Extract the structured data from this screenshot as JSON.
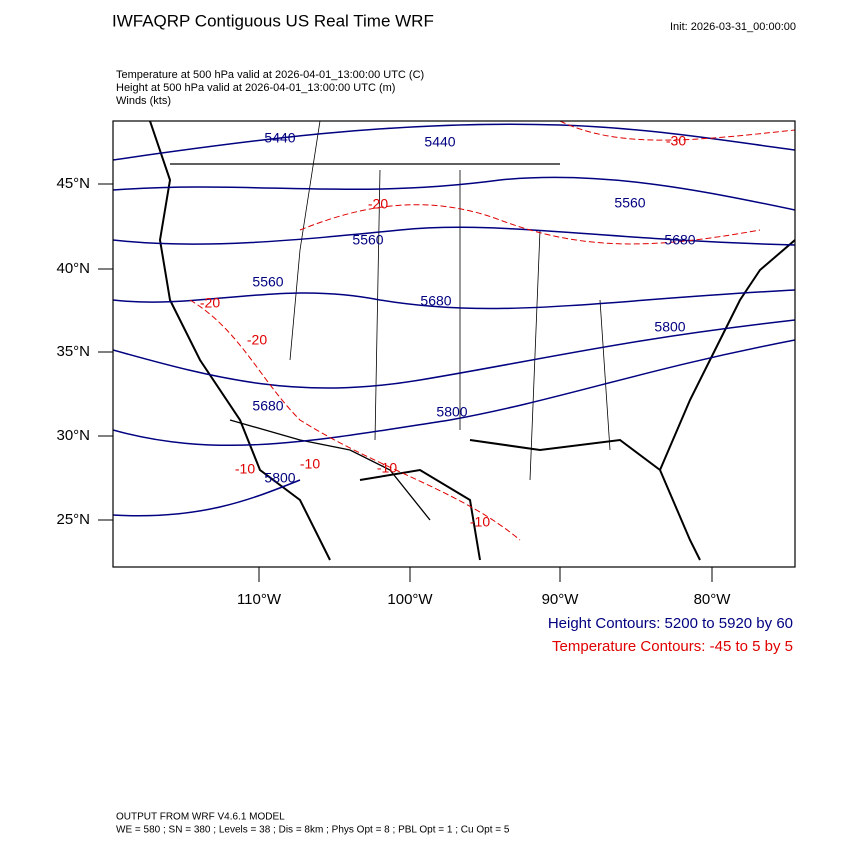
{
  "header": {
    "title": "IWFAQRP Contiguous US Real Time WRF",
    "init": "Init: 2026-03-31_00:00:00"
  },
  "fields": [
    "Temperature at 500 hPa valid at 2026-04-01_13:00:00 UTC   (C)",
    "Height at 500 hPa valid at 2026-04-01_13:00:00 UTC   (m)",
    "Winds   (kts)"
  ],
  "lat_labels": [
    "45°N",
    "40°N",
    "35°N",
    "30°N",
    "25°N"
  ],
  "lon_labels": [
    "110°W",
    "100°W",
    "90°W",
    "80°W"
  ],
  "height_labels": [
    "5440",
    "5440",
    "5560",
    "5560",
    "5680",
    "5560",
    "5680",
    "5800",
    "5680",
    "5800",
    "5800"
  ],
  "temperature_labels": [
    "-30",
    "-20",
    "-20",
    "-20",
    "-10",
    "-10",
    "-10",
    "-10"
  ],
  "legend": {
    "height": "Height Contours: 5200 to 5920 by 60",
    "temperature": "Temperature Contours: -45 to 5 by 5"
  },
  "footer": {
    "line1": "OUTPUT FROM WRF V4.6.1 MODEL",
    "line2": "WE = 580 ; SN = 380 ; Levels = 38 ; Dis = 8km ; Phys Opt = 8 ; PBL Opt = 1 ; Cu Opt = 5"
  }
}
